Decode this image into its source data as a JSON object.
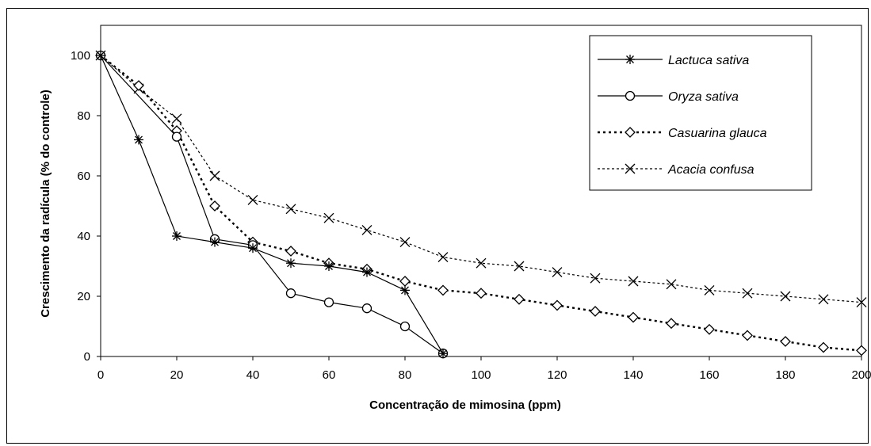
{
  "chart_data": {
    "type": "line",
    "title": "",
    "xlabel": "Concentração de mimosina (ppm)",
    "ylabel": "Crescimento da radícula (% do controle)",
    "xlim": [
      0,
      200
    ],
    "ylim": [
      0,
      110
    ],
    "x_ticks": [
      0,
      20,
      40,
      60,
      80,
      100,
      120,
      140,
      160,
      180,
      200
    ],
    "y_ticks": [
      0,
      20,
      40,
      60,
      80,
      100
    ],
    "grid": false,
    "legend_position": "top-right",
    "series": [
      {
        "name": "Lactuca sativa",
        "line": "solid",
        "marker": "asterisk",
        "x": [
          0,
          10,
          20,
          30,
          40,
          50,
          60,
          70,
          80,
          90
        ],
        "y": [
          100,
          72,
          40,
          38,
          36,
          31,
          30,
          28,
          22,
          1
        ]
      },
      {
        "name": "Oryza sativa",
        "line": "solid",
        "marker": "circle",
        "x": [
          0,
          20,
          30,
          40,
          50,
          60,
          70,
          80,
          90
        ],
        "y": [
          100,
          73,
          39,
          37,
          21,
          18,
          16,
          10,
          1
        ]
      },
      {
        "name": "Casuarina glauca",
        "line": "dashed-bold",
        "marker": "diamond",
        "x": [
          0,
          10,
          20,
          30,
          40,
          50,
          60,
          70,
          80,
          90,
          100,
          110,
          120,
          130,
          140,
          150,
          160,
          170,
          180,
          190,
          200
        ],
        "y": [
          100,
          90,
          75,
          50,
          38,
          35,
          31,
          29,
          25,
          22,
          21,
          19,
          17,
          15,
          13,
          11,
          9,
          7,
          5,
          3,
          2
        ]
      },
      {
        "name": "Acacia confusa",
        "line": "dashed",
        "marker": "x",
        "x": [
          0,
          10,
          20,
          30,
          40,
          50,
          60,
          70,
          80,
          90,
          100,
          110,
          120,
          130,
          140,
          150,
          160,
          170,
          180,
          190,
          200
        ],
        "y": [
          100,
          89,
          79,
          60,
          52,
          49,
          46,
          42,
          38,
          33,
          31,
          30,
          28,
          26,
          25,
          24,
          22,
          21,
          20,
          19,
          18
        ]
      }
    ]
  }
}
